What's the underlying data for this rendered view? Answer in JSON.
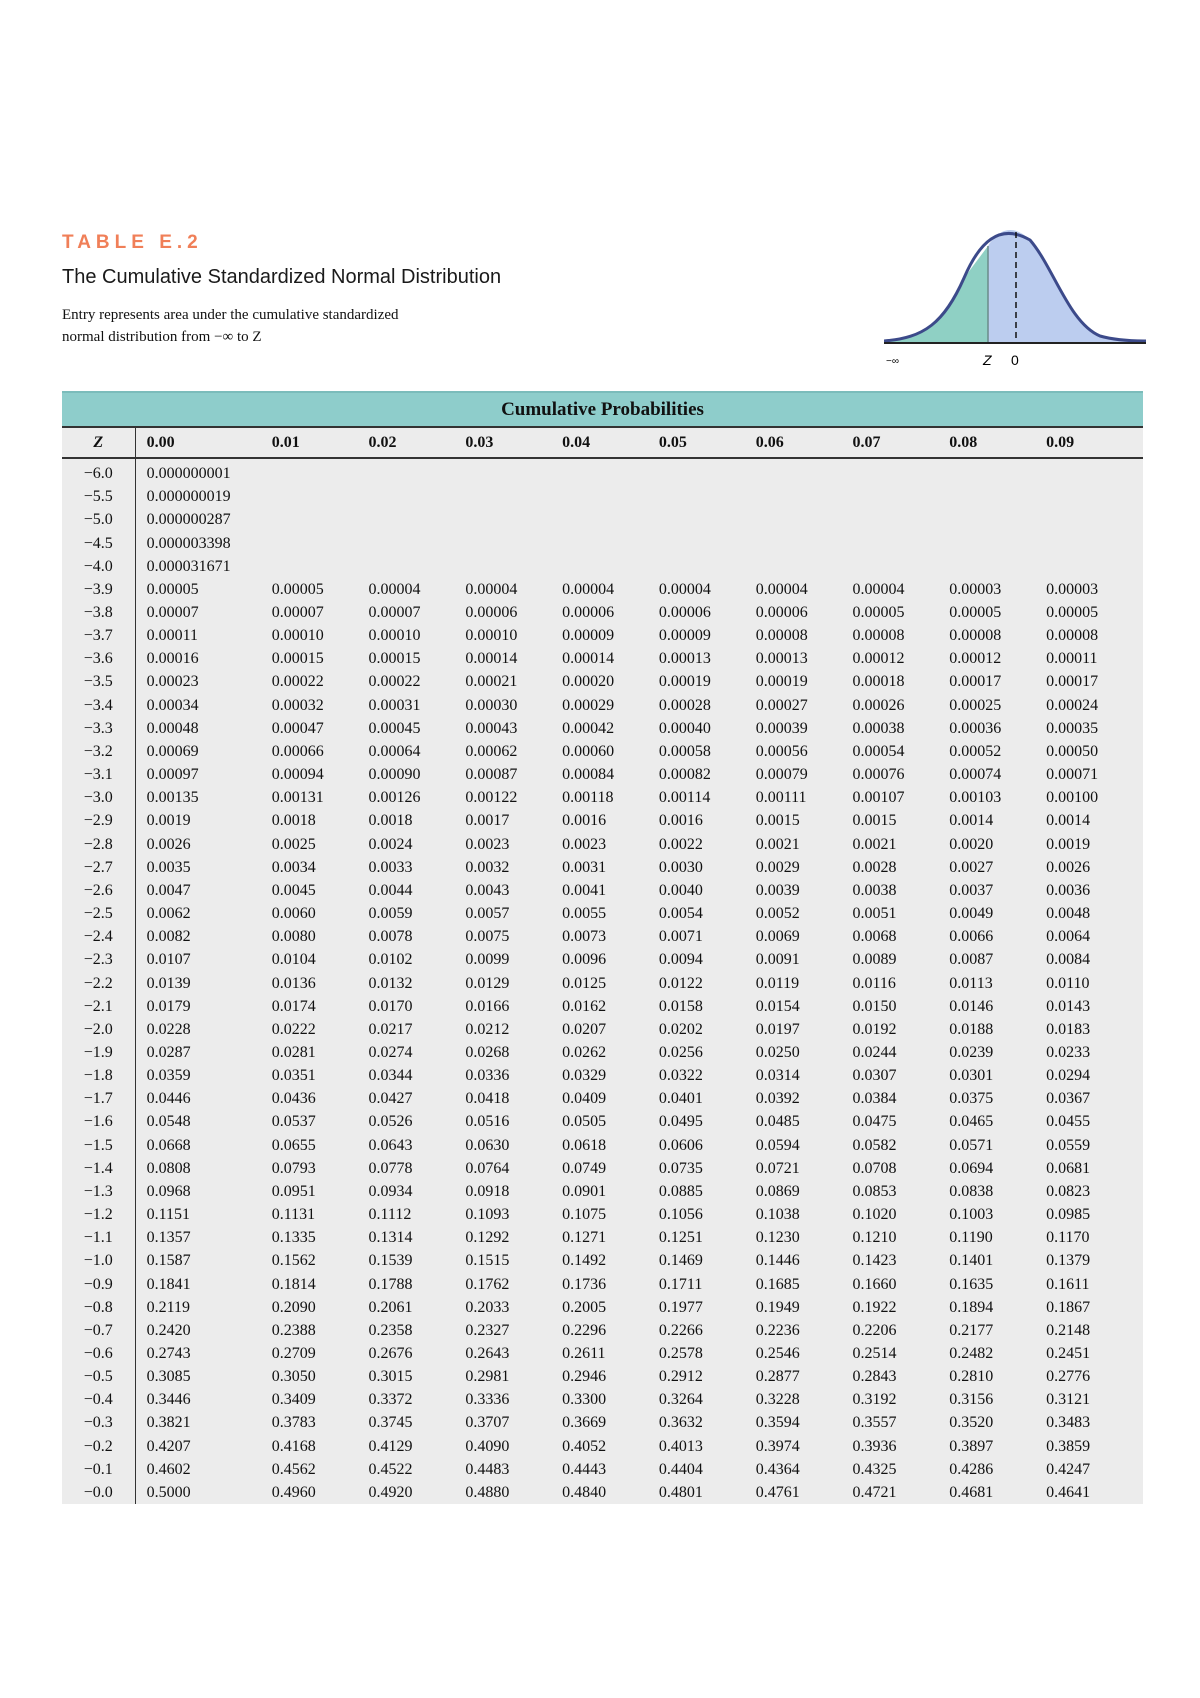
{
  "header": {
    "label": "TABLE E.2",
    "title": "The Cumulative Standardized Normal Distribution",
    "description_line1": "Entry represents area under the cumulative standardized",
    "description_line2": "normal distribution from −∞ to Z"
  },
  "figure": {
    "left_label": "−∞",
    "z_label": "Z",
    "zero_label": "0",
    "colors": {
      "left_area": "#8fd0c4",
      "right_area": "#bccdef",
      "curve": "#3c4a8a"
    }
  },
  "table": {
    "band_title": "Cumulative Probabilities",
    "columns": [
      "Z",
      "0.00",
      "0.01",
      "0.02",
      "0.03",
      "0.04",
      "0.05",
      "0.06",
      "0.07",
      "0.08",
      "0.09"
    ],
    "rows": [
      [
        "−6.0",
        "0.000000001"
      ],
      [
        "−5.5",
        "0.000000019"
      ],
      [
        "−5.0",
        "0.000000287"
      ],
      [
        "−4.5",
        "0.000003398"
      ],
      [
        "−4.0",
        "0.000031671"
      ],
      [
        "−3.9",
        "0.00005",
        "0.00005",
        "0.00004",
        "0.00004",
        "0.00004",
        "0.00004",
        "0.00004",
        "0.00004",
        "0.00003",
        "0.00003"
      ],
      [
        "−3.8",
        "0.00007",
        "0.00007",
        "0.00007",
        "0.00006",
        "0.00006",
        "0.00006",
        "0.00006",
        "0.00005",
        "0.00005",
        "0.00005"
      ],
      [
        "−3.7",
        "0.00011",
        "0.00010",
        "0.00010",
        "0.00010",
        "0.00009",
        "0.00009",
        "0.00008",
        "0.00008",
        "0.00008",
        "0.00008"
      ],
      [
        "−3.6",
        "0.00016",
        "0.00015",
        "0.00015",
        "0.00014",
        "0.00014",
        "0.00013",
        "0.00013",
        "0.00012",
        "0.00012",
        "0.00011"
      ],
      [
        "−3.5",
        "0.00023",
        "0.00022",
        "0.00022",
        "0.00021",
        "0.00020",
        "0.00019",
        "0.00019",
        "0.00018",
        "0.00017",
        "0.00017"
      ],
      [
        "−3.4",
        "0.00034",
        "0.00032",
        "0.00031",
        "0.00030",
        "0.00029",
        "0.00028",
        "0.00027",
        "0.00026",
        "0.00025",
        "0.00024"
      ],
      [
        "−3.3",
        "0.00048",
        "0.00047",
        "0.00045",
        "0.00043",
        "0.00042",
        "0.00040",
        "0.00039",
        "0.00038",
        "0.00036",
        "0.00035"
      ],
      [
        "−3.2",
        "0.00069",
        "0.00066",
        "0.00064",
        "0.00062",
        "0.00060",
        "0.00058",
        "0.00056",
        "0.00054",
        "0.00052",
        "0.00050"
      ],
      [
        "−3.1",
        "0.00097",
        "0.00094",
        "0.00090",
        "0.00087",
        "0.00084",
        "0.00082",
        "0.00079",
        "0.00076",
        "0.00074",
        "0.00071"
      ],
      [
        "−3.0",
        "0.00135",
        "0.00131",
        "0.00126",
        "0.00122",
        "0.00118",
        "0.00114",
        "0.00111",
        "0.00107",
        "0.00103",
        "0.00100"
      ],
      [
        "−2.9",
        "0.0019",
        "0.0018",
        "0.0018",
        "0.0017",
        "0.0016",
        "0.0016",
        "0.0015",
        "0.0015",
        "0.0014",
        "0.0014"
      ],
      [
        "−2.8",
        "0.0026",
        "0.0025",
        "0.0024",
        "0.0023",
        "0.0023",
        "0.0022",
        "0.0021",
        "0.0021",
        "0.0020",
        "0.0019"
      ],
      [
        "−2.7",
        "0.0035",
        "0.0034",
        "0.0033",
        "0.0032",
        "0.0031",
        "0.0030",
        "0.0029",
        "0.0028",
        "0.0027",
        "0.0026"
      ],
      [
        "−2.6",
        "0.0047",
        "0.0045",
        "0.0044",
        "0.0043",
        "0.0041",
        "0.0040",
        "0.0039",
        "0.0038",
        "0.0037",
        "0.0036"
      ],
      [
        "−2.5",
        "0.0062",
        "0.0060",
        "0.0059",
        "0.0057",
        "0.0055",
        "0.0054",
        "0.0052",
        "0.0051",
        "0.0049",
        "0.0048"
      ],
      [
        "−2.4",
        "0.0082",
        "0.0080",
        "0.0078",
        "0.0075",
        "0.0073",
        "0.0071",
        "0.0069",
        "0.0068",
        "0.0066",
        "0.0064"
      ],
      [
        "−2.3",
        "0.0107",
        "0.0104",
        "0.0102",
        "0.0099",
        "0.0096",
        "0.0094",
        "0.0091",
        "0.0089",
        "0.0087",
        "0.0084"
      ],
      [
        "−2.2",
        "0.0139",
        "0.0136",
        "0.0132",
        "0.0129",
        "0.0125",
        "0.0122",
        "0.0119",
        "0.0116",
        "0.0113",
        "0.0110"
      ],
      [
        "−2.1",
        "0.0179",
        "0.0174",
        "0.0170",
        "0.0166",
        "0.0162",
        "0.0158",
        "0.0154",
        "0.0150",
        "0.0146",
        "0.0143"
      ],
      [
        "−2.0",
        "0.0228",
        "0.0222",
        "0.0217",
        "0.0212",
        "0.0207",
        "0.0202",
        "0.0197",
        "0.0192",
        "0.0188",
        "0.0183"
      ],
      [
        "−1.9",
        "0.0287",
        "0.0281",
        "0.0274",
        "0.0268",
        "0.0262",
        "0.0256",
        "0.0250",
        "0.0244",
        "0.0239",
        "0.0233"
      ],
      [
        "−1.8",
        "0.0359",
        "0.0351",
        "0.0344",
        "0.0336",
        "0.0329",
        "0.0322",
        "0.0314",
        "0.0307",
        "0.0301",
        "0.0294"
      ],
      [
        "−1.7",
        "0.0446",
        "0.0436",
        "0.0427",
        "0.0418",
        "0.0409",
        "0.0401",
        "0.0392",
        "0.0384",
        "0.0375",
        "0.0367"
      ],
      [
        "−1.6",
        "0.0548",
        "0.0537",
        "0.0526",
        "0.0516",
        "0.0505",
        "0.0495",
        "0.0485",
        "0.0475",
        "0.0465",
        "0.0455"
      ],
      [
        "−1.5",
        "0.0668",
        "0.0655",
        "0.0643",
        "0.0630",
        "0.0618",
        "0.0606",
        "0.0594",
        "0.0582",
        "0.0571",
        "0.0559"
      ],
      [
        "−1.4",
        "0.0808",
        "0.0793",
        "0.0778",
        "0.0764",
        "0.0749",
        "0.0735",
        "0.0721",
        "0.0708",
        "0.0694",
        "0.0681"
      ],
      [
        "−1.3",
        "0.0968",
        "0.0951",
        "0.0934",
        "0.0918",
        "0.0901",
        "0.0885",
        "0.0869",
        "0.0853",
        "0.0838",
        "0.0823"
      ],
      [
        "−1.2",
        "0.1151",
        "0.1131",
        "0.1112",
        "0.1093",
        "0.1075",
        "0.1056",
        "0.1038",
        "0.1020",
        "0.1003",
        "0.0985"
      ],
      [
        "−1.1",
        "0.1357",
        "0.1335",
        "0.1314",
        "0.1292",
        "0.1271",
        "0.1251",
        "0.1230",
        "0.1210",
        "0.1190",
        "0.1170"
      ],
      [
        "−1.0",
        "0.1587",
        "0.1562",
        "0.1539",
        "0.1515",
        "0.1492",
        "0.1469",
        "0.1446",
        "0.1423",
        "0.1401",
        "0.1379"
      ],
      [
        "−0.9",
        "0.1841",
        "0.1814",
        "0.1788",
        "0.1762",
        "0.1736",
        "0.1711",
        "0.1685",
        "0.1660",
        "0.1635",
        "0.1611"
      ],
      [
        "−0.8",
        "0.2119",
        "0.2090",
        "0.2061",
        "0.2033",
        "0.2005",
        "0.1977",
        "0.1949",
        "0.1922",
        "0.1894",
        "0.1867"
      ],
      [
        "−0.7",
        "0.2420",
        "0.2388",
        "0.2358",
        "0.2327",
        "0.2296",
        "0.2266",
        "0.2236",
        "0.2206",
        "0.2177",
        "0.2148"
      ],
      [
        "−0.6",
        "0.2743",
        "0.2709",
        "0.2676",
        "0.2643",
        "0.2611",
        "0.2578",
        "0.2546",
        "0.2514",
        "0.2482",
        "0.2451"
      ],
      [
        "−0.5",
        "0.3085",
        "0.3050",
        "0.3015",
        "0.2981",
        "0.2946",
        "0.2912",
        "0.2877",
        "0.2843",
        "0.2810",
        "0.2776"
      ],
      [
        "−0.4",
        "0.3446",
        "0.3409",
        "0.3372",
        "0.3336",
        "0.3300",
        "0.3264",
        "0.3228",
        "0.3192",
        "0.3156",
        "0.3121"
      ],
      [
        "−0.3",
        "0.3821",
        "0.3783",
        "0.3745",
        "0.3707",
        "0.3669",
        "0.3632",
        "0.3594",
        "0.3557",
        "0.3520",
        "0.3483"
      ],
      [
        "−0.2",
        "0.4207",
        "0.4168",
        "0.4129",
        "0.4090",
        "0.4052",
        "0.4013",
        "0.3974",
        "0.3936",
        "0.3897",
        "0.3859"
      ],
      [
        "−0.1",
        "0.4602",
        "0.4562",
        "0.4522",
        "0.4483",
        "0.4443",
        "0.4404",
        "0.4364",
        "0.4325",
        "0.4286",
        "0.4247"
      ],
      [
        "−0.0",
        "0.5000",
        "0.4960",
        "0.4920",
        "0.4880",
        "0.4840",
        "0.4801",
        "0.4761",
        "0.4721",
        "0.4681",
        "0.4641"
      ]
    ]
  }
}
